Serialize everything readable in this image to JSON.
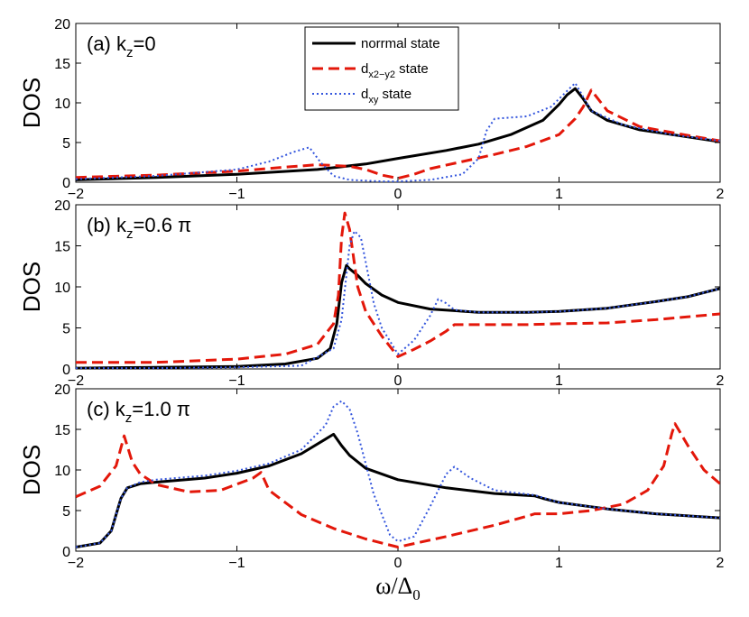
{
  "chart_data": [
    {
      "type": "line",
      "panel_label": "(a)",
      "kz_symbol": "k",
      "kz_sub": "z",
      "kz_value": "=0",
      "ylabel": "DOS",
      "xlim": [
        -2,
        2
      ],
      "ylim": [
        0,
        20
      ],
      "xticks": [
        "−2",
        "−1",
        "0",
        "1",
        "2"
      ],
      "yticks": [
        "0",
        "5",
        "10",
        "15",
        "20"
      ],
      "legend": {
        "position": "top-center",
        "entries": [
          {
            "main": "norrmal state",
            "sub": ""
          },
          {
            "main": "d",
            "sub": "x2−y2",
            "rest": " state"
          },
          {
            "main": "d",
            "sub": "xy",
            "rest": " state"
          }
        ]
      },
      "series": [
        {
          "name": "normal state",
          "color": "#000000",
          "style": "solid",
          "x": [
            -2,
            -1.5,
            -1,
            -0.5,
            -0.2,
            0,
            0.3,
            0.5,
            0.7,
            0.9,
            1.0,
            1.05,
            1.1,
            1.15,
            1.2,
            1.3,
            1.5,
            1.8,
            2.0
          ],
          "y": [
            0.3,
            0.6,
            1.0,
            1.6,
            2.3,
            3.0,
            4.0,
            4.8,
            6.0,
            7.8,
            9.8,
            11.0,
            11.8,
            10.5,
            9.0,
            7.8,
            6.6,
            5.7,
            5.1
          ]
        },
        {
          "name": "dx2-y2 state",
          "color": "#e3170a",
          "style": "dashed",
          "x": [
            -2,
            -1.5,
            -1,
            -0.7,
            -0.5,
            -0.3,
            -0.2,
            -0.1,
            0,
            0.1,
            0.2,
            0.4,
            0.6,
            0.8,
            1.0,
            1.1,
            1.15,
            1.2,
            1.3,
            1.5,
            1.8,
            2.0
          ],
          "y": [
            0.6,
            0.9,
            1.4,
            1.9,
            2.2,
            2.0,
            1.6,
            0.9,
            0.5,
            1.0,
            1.7,
            2.6,
            3.5,
            4.5,
            6.0,
            8.0,
            9.5,
            11.6,
            9.0,
            7.0,
            5.9,
            5.2
          ]
        },
        {
          "name": "dxy state",
          "color": "#3355dd",
          "style": "dotted",
          "x": [
            -2,
            -1.5,
            -1,
            -0.8,
            -0.65,
            -0.55,
            -0.48,
            -0.4,
            -0.3,
            -0.1,
            0,
            0.2,
            0.4,
            0.5,
            0.55,
            0.6,
            0.8,
            0.95,
            1.05,
            1.1,
            1.2,
            1.4,
            1.7,
            2.0
          ],
          "y": [
            0.4,
            0.8,
            1.6,
            2.6,
            3.8,
            4.4,
            2.5,
            0.8,
            0.3,
            0.1,
            0.1,
            0.3,
            1.0,
            3.0,
            6.5,
            8.0,
            8.3,
            9.5,
            11.5,
            12.5,
            9.0,
            7.2,
            6.0,
            5.2
          ]
        }
      ]
    },
    {
      "type": "line",
      "panel_label": "(b)",
      "kz_symbol": "k",
      "kz_sub": "z",
      "kz_value": "=0.6 π",
      "ylabel": "DOS",
      "xlim": [
        -2,
        2
      ],
      "ylim": [
        0,
        20
      ],
      "xticks": [
        "−2",
        "−1",
        "0",
        "1",
        "2"
      ],
      "yticks": [
        "0",
        "5",
        "10",
        "15",
        "20"
      ],
      "series": [
        {
          "name": "normal state",
          "color": "#000000",
          "style": "solid",
          "x": [
            -2,
            -1.5,
            -1,
            -0.7,
            -0.5,
            -0.42,
            -0.38,
            -0.35,
            -0.32,
            -0.3,
            -0.25,
            -0.2,
            -0.1,
            0,
            0.2,
            0.5,
            0.8,
            1.0,
            1.3,
            1.6,
            1.8,
            2.0
          ],
          "y": [
            0.1,
            0.2,
            0.3,
            0.6,
            1.3,
            2.5,
            5.5,
            10.5,
            12.6,
            12.2,
            11.4,
            10.4,
            9.0,
            8.1,
            7.3,
            6.9,
            6.9,
            7.0,
            7.4,
            8.2,
            8.8,
            9.8
          ]
        },
        {
          "name": "dx2-y2 state",
          "color": "#e3170a",
          "style": "dashed",
          "x": [
            -2,
            -1.5,
            -1,
            -0.7,
            -0.5,
            -0.4,
            -0.37,
            -0.35,
            -0.33,
            -0.3,
            -0.25,
            -0.2,
            -0.1,
            0,
            0.1,
            0.2,
            0.3,
            0.35,
            0.5,
            0.8,
            1.0,
            1.3,
            1.6,
            2.0
          ],
          "y": [
            0.8,
            0.8,
            1.2,
            1.8,
            3.0,
            5.5,
            9.0,
            16.0,
            19.0,
            17.0,
            10.0,
            7.0,
            4.0,
            1.5,
            2.4,
            3.4,
            4.6,
            5.4,
            5.4,
            5.4,
            5.5,
            5.6,
            6.0,
            6.7
          ]
        },
        {
          "name": "dxy state",
          "color": "#3355dd",
          "style": "dotted",
          "x": [
            -2,
            -1.5,
            -1,
            -0.6,
            -0.4,
            -0.35,
            -0.3,
            -0.27,
            -0.23,
            -0.2,
            -0.15,
            -0.1,
            0,
            0.1,
            0.2,
            0.25,
            0.3,
            0.35,
            0.5,
            0.8,
            1.0,
            1.3,
            1.6,
            1.8,
            2.0
          ],
          "y": [
            0.1,
            0.1,
            0.2,
            0.4,
            2.5,
            6.0,
            15.0,
            16.8,
            16.0,
            13.0,
            8.0,
            5.0,
            1.8,
            3.5,
            6.5,
            8.5,
            8.0,
            7.2,
            6.9,
            6.9,
            7.0,
            7.4,
            8.2,
            8.8,
            9.8
          ]
        }
      ]
    },
    {
      "type": "line",
      "panel_label": "(c)",
      "kz_symbol": "k",
      "kz_sub": "z",
      "kz_value": "=1.0 π",
      "ylabel": "DOS",
      "xlabel_main": "ω/Δ",
      "xlabel_sub": "0",
      "xlim": [
        -2,
        2
      ],
      "ylim": [
        0,
        20
      ],
      "xticks": [
        "−2",
        "−1",
        "0",
        "1",
        "2"
      ],
      "yticks": [
        "0",
        "5",
        "10",
        "15",
        "20"
      ],
      "series": [
        {
          "name": "normal state",
          "color": "#000000",
          "style": "solid",
          "x": [
            -2,
            -1.85,
            -1.78,
            -1.72,
            -1.68,
            -1.6,
            -1.5,
            -1.2,
            -1.0,
            -0.8,
            -0.6,
            -0.45,
            -0.4,
            -0.35,
            -0.3,
            -0.2,
            0,
            0.3,
            0.6,
            0.85,
            0.9,
            1.0,
            1.3,
            1.6,
            2.0
          ],
          "y": [
            0.5,
            1.0,
            2.5,
            6.5,
            7.8,
            8.3,
            8.5,
            9.0,
            9.6,
            10.5,
            12.0,
            13.8,
            14.4,
            13.0,
            11.8,
            10.2,
            8.8,
            7.8,
            7.1,
            6.8,
            6.5,
            6.0,
            5.2,
            4.6,
            4.1
          ]
        },
        {
          "name": "dx2-y2 state",
          "color": "#e3170a",
          "style": "dashed",
          "x": [
            -2,
            -1.85,
            -1.75,
            -1.7,
            -1.65,
            -1.6,
            -1.5,
            -1.3,
            -1.1,
            -0.9,
            -0.85,
            -0.8,
            -0.6,
            -0.4,
            -0.2,
            0,
            0.3,
            0.6,
            0.8,
            0.85,
            1.0,
            1.2,
            1.4,
            1.55,
            1.65,
            1.7,
            1.72,
            1.8,
            1.9,
            2.0
          ],
          "y": [
            6.7,
            8.0,
            10.5,
            14.2,
            11.0,
            9.5,
            8.2,
            7.3,
            7.5,
            9.0,
            9.7,
            7.5,
            4.5,
            2.8,
            1.5,
            0.5,
            1.8,
            3.2,
            4.3,
            4.6,
            4.6,
            5.0,
            5.8,
            7.5,
            10.5,
            14.5,
            15.7,
            13.0,
            10.0,
            8.3
          ]
        },
        {
          "name": "dxy state",
          "color": "#3355dd",
          "style": "dotted",
          "x": [
            -2,
            -1.85,
            -1.78,
            -1.72,
            -1.68,
            -1.6,
            -1.5,
            -1.2,
            -1.0,
            -0.8,
            -0.6,
            -0.45,
            -0.4,
            -0.35,
            -0.3,
            -0.25,
            -0.15,
            -0.05,
            0,
            0.1,
            0.2,
            0.3,
            0.35,
            0.45,
            0.6,
            0.85,
            1.0,
            1.3,
            1.6,
            2.0
          ],
          "y": [
            0.5,
            1.0,
            2.5,
            6.5,
            7.8,
            8.5,
            8.8,
            9.3,
            9.9,
            10.8,
            12.5,
            15.5,
            17.8,
            18.5,
            17.5,
            14.5,
            7.0,
            2.0,
            1.2,
            1.8,
            5.5,
            9.5,
            10.4,
            9.0,
            7.5,
            6.9,
            6.0,
            5.2,
            4.6,
            4.1
          ]
        }
      ]
    }
  ]
}
